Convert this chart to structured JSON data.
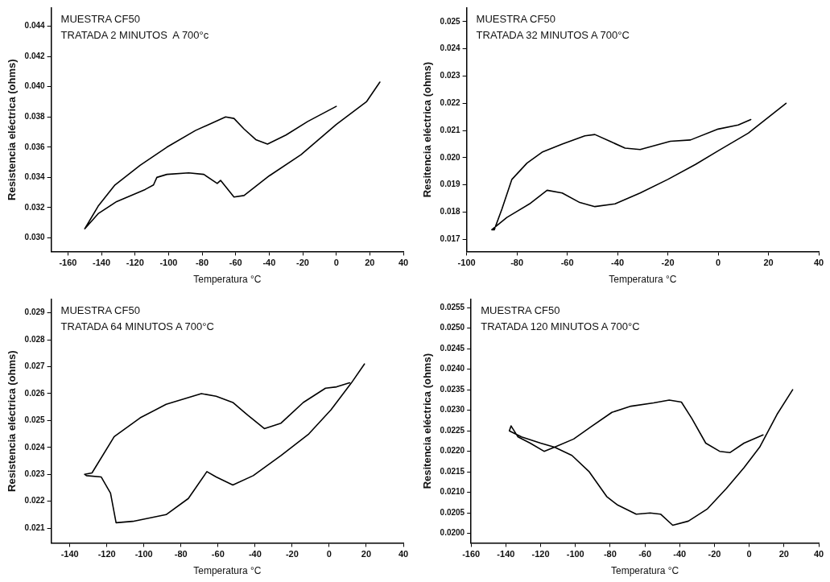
{
  "chart_data": [
    {
      "type": "line",
      "xlabel": "Temperatura °C",
      "ylabel": "Resistencia eléctrica (ohms)",
      "annotations": [
        "MUESTRA CF50",
        "TRATADA 2 MINUTOS  A 700°c"
      ],
      "marker": "none",
      "line_style": "solid",
      "grid": false,
      "legend": false,
      "xlim": [
        -170,
        40
      ],
      "xticks": [
        -160,
        -140,
        -120,
        -100,
        -80,
        -60,
        -40,
        -20,
        0,
        20,
        40
      ],
      "ylim": [
        0.0291,
        0.0452
      ],
      "yticks": [
        {
          "value": 0.03,
          "label": "0.030"
        },
        {
          "value": 0.032,
          "label": "0.032"
        },
        {
          "value": 0.034,
          "label": "0.034"
        },
        {
          "value": 0.036,
          "label": "0.036"
        },
        {
          "value": 0.038,
          "label": "0.038"
        },
        {
          "value": 0.04,
          "label": "0.040"
        },
        {
          "value": 0.042,
          "label": "0.042"
        },
        {
          "value": 0.044,
          "label": "0.044"
        }
      ],
      "series": [
        {
          "color": "#000000",
          "x": [
            26,
            18,
            0,
            -21,
            -40,
            -55,
            -61,
            -69,
            -71,
            -79,
            -88,
            -101,
            -107,
            -109,
            -114,
            -131,
            -142,
            -150,
            -142,
            -132,
            -117,
            -101,
            -84,
            -66,
            -61,
            -55,
            -48,
            -41,
            -30,
            -17,
            0
          ],
          "values": [
            0.0403,
            0.039,
            0.0375,
            0.0355,
            0.0341,
            0.0328,
            0.0327,
            0.0338,
            0.0336,
            0.0342,
            0.0343,
            0.0342,
            0.034,
            0.0335,
            0.0332,
            0.0324,
            0.0316,
            0.0306,
            0.0321,
            0.0335,
            0.0348,
            0.036,
            0.0371,
            0.038,
            0.0379,
            0.0372,
            0.0365,
            0.0362,
            0.0368,
            0.0377,
            0.0387
          ]
        }
      ]
    },
    {
      "type": "line",
      "xlabel": "Temperatura °C",
      "ylabel": "Resitencia eléctrica (ohms)",
      "annotations": [
        "MUESTRA CF50",
        "TRATADA 32 MINUTOS A 700°C"
      ],
      "marker": "none",
      "line_style": "solid",
      "grid": false,
      "legend": false,
      "xlim": [
        -100,
        40
      ],
      "xticks": [
        -100,
        -80,
        -60,
        -40,
        -20,
        0,
        20,
        40
      ],
      "ylim": [
        0.01655,
        0.0255
      ],
      "yticks": [
        {
          "value": 0.017,
          "label": "0.017"
        },
        {
          "value": 0.018,
          "label": "0.018"
        },
        {
          "value": 0.019,
          "label": "0.019"
        },
        {
          "value": 0.02,
          "label": "0.020"
        },
        {
          "value": 0.021,
          "label": "0.021"
        },
        {
          "value": 0.022,
          "label": "0.022"
        },
        {
          "value": 0.023,
          "label": "0.023"
        },
        {
          "value": 0.024,
          "label": "0.024"
        },
        {
          "value": 0.025,
          "label": "0.025"
        }
      ],
      "series": [
        {
          "color": "#000000",
          "x": [
            27,
            12,
            0,
            -9,
            -20,
            -31,
            -41,
            -49,
            -55,
            -62,
            -68,
            -75,
            -84,
            -90,
            -89,
            -86,
            -82,
            -76,
            -70,
            -62,
            -53,
            -49,
            -43,
            -37,
            -31,
            -19,
            -11,
            0,
            8,
            13
          ],
          "values": [
            0.022,
            0.0209,
            0.02025,
            0.01975,
            0.0192,
            0.0187,
            0.0183,
            0.0182,
            0.01835,
            0.0187,
            0.0188,
            0.0183,
            0.0178,
            0.01735,
            0.01735,
            0.0181,
            0.0192,
            0.0198,
            0.0202,
            0.0205,
            0.0208,
            0.02085,
            0.0206,
            0.02035,
            0.0203,
            0.0206,
            0.02065,
            0.02105,
            0.0212,
            0.0214
          ]
        }
      ]
    },
    {
      "type": "line",
      "xlabel": "Temperatura °C",
      "ylabel": "Resistencia eléctrica (ohms)",
      "annotations": [
        "MUESTRA CF50",
        "TRATADA 64 MINUTOS A 700°C"
      ],
      "marker": "none",
      "line_style": "solid",
      "grid": false,
      "legend": false,
      "xlim": [
        -150,
        40
      ],
      "xticks": [
        -140,
        -120,
        -100,
        -80,
        -60,
        -40,
        -20,
        0,
        20,
        40
      ],
      "ylim": [
        0.02045,
        0.0295
      ],
      "yticks": [
        {
          "value": 0.021,
          "label": "0.021"
        },
        {
          "value": 0.022,
          "label": "0.022"
        },
        {
          "value": 0.023,
          "label": "0.023"
        },
        {
          "value": 0.024,
          "label": "0.024"
        },
        {
          "value": 0.025,
          "label": "0.025"
        },
        {
          "value": 0.026,
          "label": "0.026"
        },
        {
          "value": 0.027,
          "label": "0.027"
        },
        {
          "value": 0.028,
          "label": "0.028"
        },
        {
          "value": 0.029,
          "label": "0.029"
        }
      ],
      "series": [
        {
          "color": "#000000",
          "x": [
            19,
            12,
            1,
            -11,
            -26,
            -41,
            -52,
            -61,
            -66,
            -76,
            -88,
            -106,
            -115,
            -118,
            -123,
            -131,
            -132,
            -128,
            -116,
            -102,
            -88,
            -69,
            -61,
            -52,
            -44,
            -35,
            -26,
            -14,
            -2,
            4,
            11
          ],
          "values": [
            0.0271,
            0.0264,
            0.0254,
            0.0245,
            0.0237,
            0.02295,
            0.0226,
            0.0229,
            0.0231,
            0.0221,
            0.0215,
            0.02125,
            0.0212,
            0.0223,
            0.0229,
            0.02295,
            0.023,
            0.02305,
            0.0244,
            0.0251,
            0.0256,
            0.026,
            0.0259,
            0.02567,
            0.0252,
            0.0247,
            0.0249,
            0.02567,
            0.0262,
            0.02625,
            0.0264
          ]
        }
      ]
    },
    {
      "type": "line",
      "xlabel": "Temperatura °C",
      "ylabel": "Resitencia eléctrica (ohms)",
      "annotations": [
        "MUESTRA CF50",
        "TRATADA 120 MINUTOS A 700°C"
      ],
      "marker": "none",
      "line_style": "solid",
      "grid": false,
      "legend": false,
      "xlim": [
        -160,
        40
      ],
      "xticks": [
        -160,
        -140,
        -120,
        -100,
        -80,
        -60,
        -40,
        -20,
        0,
        20,
        40
      ],
      "ylim": [
        0.01977,
        0.0257
      ],
      "yticks": [
        {
          "value": 0.02,
          "label": "0.0200"
        },
        {
          "value": 0.0205,
          "label": "0.0205"
        },
        {
          "value": 0.021,
          "label": "0.0210"
        },
        {
          "value": 0.0215,
          "label": "0.0215"
        },
        {
          "value": 0.022,
          "label": "0.0220"
        },
        {
          "value": 0.0225,
          "label": "0.0225"
        },
        {
          "value": 0.023,
          "label": "0.0230"
        },
        {
          "value": 0.0235,
          "label": "0.0235"
        },
        {
          "value": 0.024,
          "label": "0.0240"
        },
        {
          "value": 0.0245,
          "label": "0.0245"
        },
        {
          "value": 0.025,
          "label": "0.0250"
        },
        {
          "value": 0.0255,
          "label": "0.0255"
        }
      ],
      "series": [
        {
          "color": "#000000",
          "x": [
            25,
            16,
            6,
            -3,
            -13,
            -24,
            -35,
            -44,
            -51,
            -57,
            -65,
            -76,
            -82,
            -92,
            -102,
            -112,
            -120,
            -131,
            -138,
            -137,
            -133,
            -126,
            -118,
            -112,
            -101,
            -91,
            -79,
            -68,
            -55,
            -46,
            -39,
            -33,
            -25,
            -17,
            -11,
            -3,
            8
          ],
          "values": [
            0.0235,
            0.0229,
            0.0221,
            0.0216,
            0.0211,
            0.0206,
            0.0203,
            0.0202,
            0.02047,
            0.0205,
            0.02047,
            0.0207,
            0.0209,
            0.0215,
            0.0219,
            0.0221,
            0.0222,
            0.02235,
            0.0225,
            0.02262,
            0.02235,
            0.0222,
            0.022,
            0.0221,
            0.0223,
            0.0226,
            0.02295,
            0.0231,
            0.02318,
            0.02325,
            0.0232,
            0.0228,
            0.0222,
            0.022,
            0.02197,
            0.0222,
            0.0224
          ]
        }
      ]
    }
  ]
}
